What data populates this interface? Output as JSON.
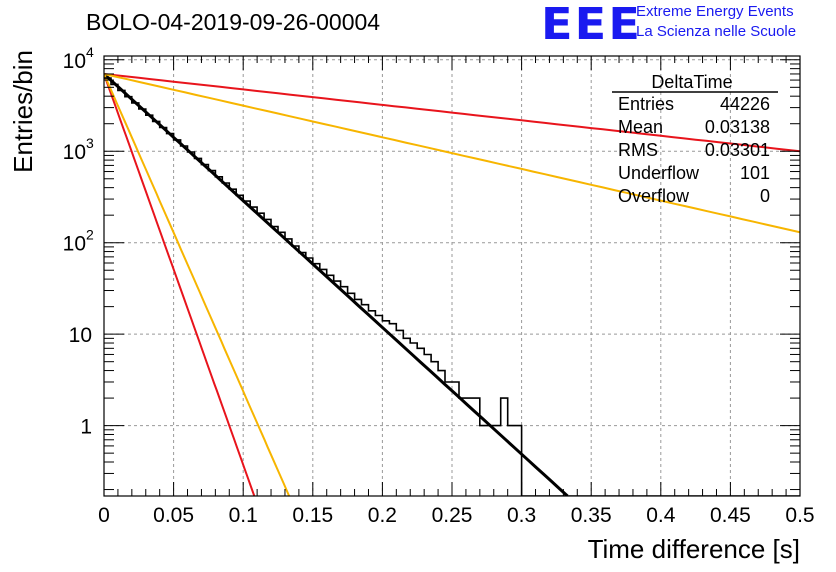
{
  "header": {
    "title": "BOLO-04-2019-09-26-00004",
    "logo_text": "EEE",
    "logo_line1": "Extreme Energy Events",
    "logo_line2": "La Scienza nelle Scuole"
  },
  "stats_box": {
    "title": "DeltaTime",
    "rows": [
      {
        "label": "Entries",
        "value": "44226"
      },
      {
        "label": "Mean",
        "value": "0.03138"
      },
      {
        "label": "RMS",
        "value": "0.03301"
      },
      {
        "label": "Underflow",
        "value": "101"
      },
      {
        "label": "Overflow",
        "value": "0"
      }
    ]
  },
  "colors": {
    "histogram": "#000000",
    "fit": "#000000",
    "red_curve": "#e8141c",
    "orange_curve": "#f7b500",
    "grid": "#999999",
    "logo": "#1a1af0"
  },
  "chart_data": {
    "type": "line",
    "title": "BOLO-04-2019-09-26-00004",
    "xlabel": "Time difference [s]",
    "ylabel": "Entries/bin",
    "xlim": [
      0,
      0.5
    ],
    "ylim": [
      0.17,
      11000
    ],
    "y_scale": "log",
    "grid": true,
    "legend": "none",
    "x_ticks": [
      "0",
      "0.05",
      "0.1",
      "0.15",
      "0.2",
      "0.25",
      "0.3",
      "0.35",
      "0.4",
      "0.45",
      "0.5"
    ],
    "y_ticks": [
      {
        "value": 10000,
        "base": "10",
        "exp": "4"
      },
      {
        "value": 1000,
        "base": "10",
        "exp": "3"
      },
      {
        "value": 100,
        "base": "10",
        "exp": "2"
      },
      {
        "value": 10,
        "base": "10",
        "exp": ""
      },
      {
        "value": 1,
        "base": "1",
        "exp": ""
      }
    ],
    "histogram": {
      "bin_width": 0.005,
      "counts": [
        6300,
        5380,
        4630,
        3950,
        3380,
        2900,
        2480,
        2120,
        1820,
        1560,
        1330,
        1140,
        980,
        835,
        715,
        615,
        525,
        450,
        385,
        330,
        285,
        245,
        210,
        180,
        150,
        130,
        110,
        92,
        78,
        68,
        59,
        51,
        44,
        38,
        33,
        28,
        24,
        21,
        18,
        16,
        14,
        13,
        11,
        9,
        8,
        7,
        6,
        5,
        4,
        3,
        3,
        2,
        2,
        2,
        1,
        1,
        1,
        2,
        1,
        1,
        0,
        0,
        0,
        0,
        0,
        0,
        0,
        0,
        0,
        0,
        0,
        0,
        0,
        0,
        0,
        0,
        0,
        0,
        0,
        0,
        0,
        0,
        0,
        0,
        0,
        0,
        0,
        0,
        0,
        0,
        0,
        0,
        0,
        0,
        0,
        0,
        0,
        0,
        0,
        0
      ]
    },
    "series": [
      {
        "type": "exponential",
        "color": "#000000",
        "y0": 7000,
        "y_at_x1": 0.17,
        "x1": 0.333
      },
      {
        "type": "exponential",
        "color": "#e8141c",
        "y0": 7000,
        "y_at_x1": 1000,
        "x1": 0.5
      },
      {
        "type": "exponential",
        "color": "#f7b500",
        "y0": 7000,
        "y_at_x1": 130,
        "x1": 0.5
      },
      {
        "type": "exponential",
        "color": "#e8141c",
        "y0": 7000,
        "y_at_x1": 0.17,
        "x1": 0.108
      },
      {
        "type": "exponential",
        "color": "#f7b500",
        "y0": 7000,
        "y_at_x1": 0.17,
        "x1": 0.133
      }
    ]
  }
}
